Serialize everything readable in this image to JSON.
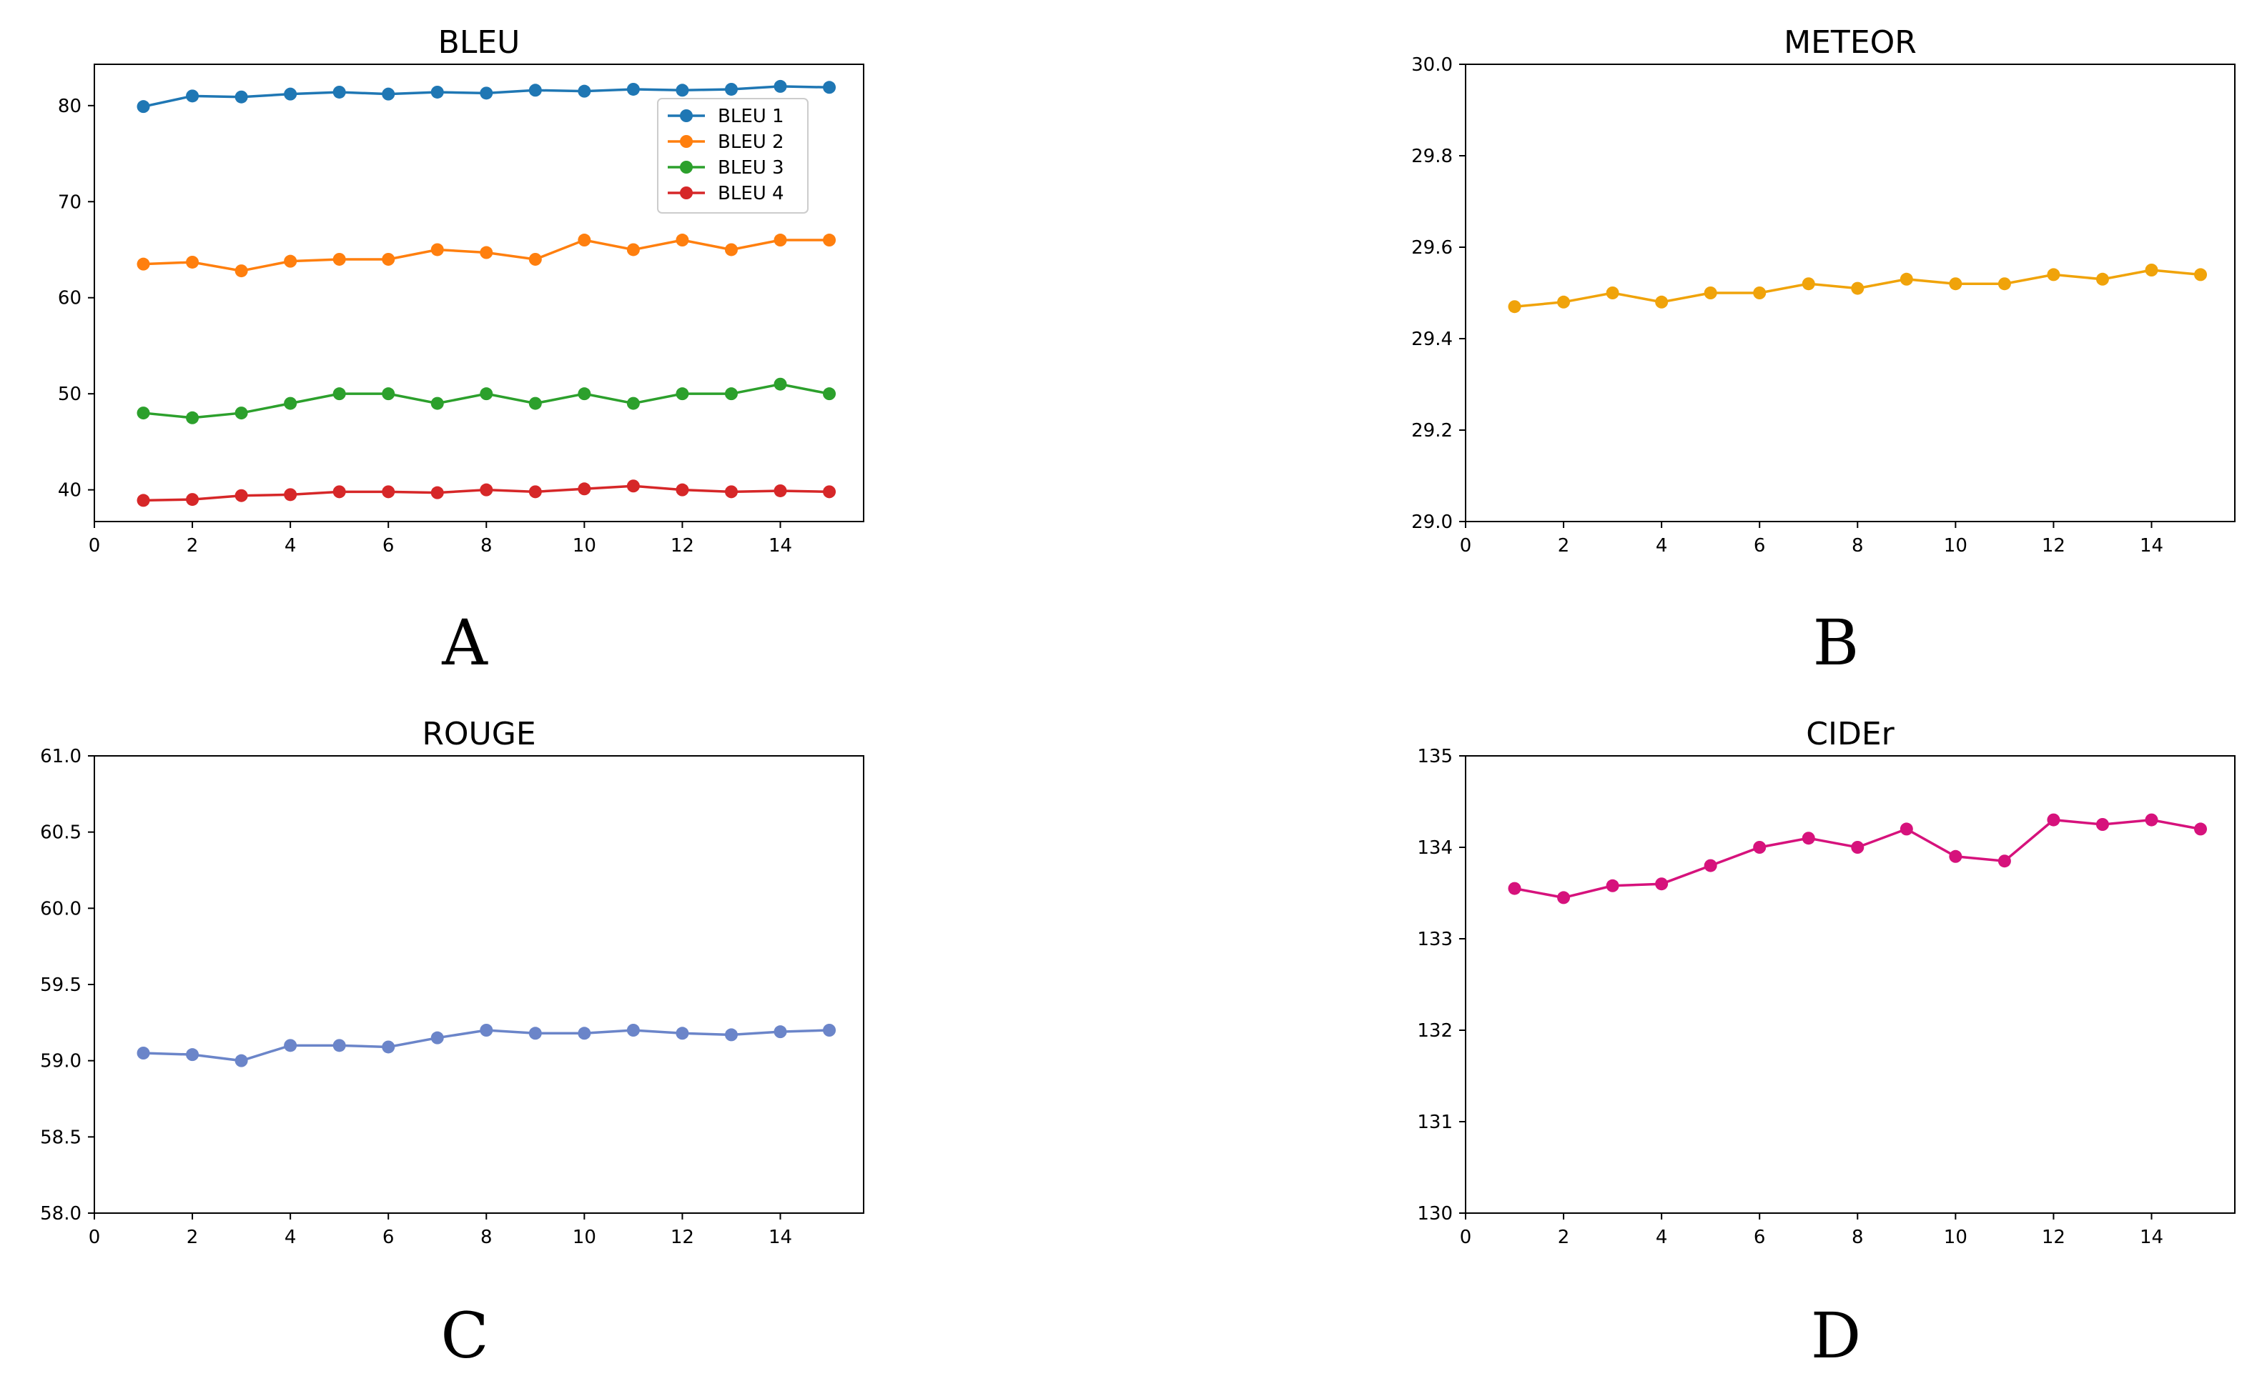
{
  "chart_data": [
    {
      "id": "A",
      "panel_label": "A",
      "type": "line",
      "title": "BLEU",
      "xlabel": "",
      "ylabel": "",
      "xlim": [
        0,
        15.7
      ],
      "ylim": [
        36.7,
        84.3
      ],
      "xticks": [
        0,
        2,
        4,
        6,
        8,
        10,
        12,
        14
      ],
      "yticks": [
        40,
        50,
        60,
        70,
        80
      ],
      "tick_decimals": 0,
      "grid": false,
      "legend": "top-right",
      "x": [
        1,
        2,
        3,
        4,
        5,
        6,
        7,
        8,
        9,
        10,
        11,
        12,
        13,
        14,
        15
      ],
      "series": [
        {
          "name": "BLEU 1",
          "color": "#1f77b4",
          "values": [
            79.9,
            81.0,
            80.9,
            81.2,
            81.4,
            81.2,
            81.4,
            81.3,
            81.6,
            81.5,
            81.7,
            81.6,
            81.7,
            82.0,
            81.9
          ]
        },
        {
          "name": "BLEU 2",
          "color": "#ff7f0e",
          "values": [
            63.5,
            63.7,
            62.8,
            63.8,
            64.0,
            64.0,
            65.0,
            64.7,
            64.0,
            66.0,
            65.0,
            66.0,
            65.0,
            66.0,
            66.0
          ]
        },
        {
          "name": "BLEU 3",
          "color": "#2ca02c",
          "values": [
            48.0,
            47.5,
            48.0,
            49.0,
            50.0,
            50.0,
            49.0,
            50.0,
            49.0,
            50.0,
            49.0,
            50.0,
            50.0,
            51.0,
            50.0
          ]
        },
        {
          "name": "BLEU 4",
          "color": "#d62728",
          "values": [
            38.9,
            39.0,
            39.4,
            39.5,
            39.8,
            39.8,
            39.7,
            40.0,
            39.8,
            40.1,
            40.4,
            40.0,
            39.8,
            39.9,
            39.8
          ]
        }
      ]
    },
    {
      "id": "B",
      "panel_label": "B",
      "type": "line",
      "title": "METEOR",
      "xlabel": "",
      "ylabel": "",
      "xlim": [
        0,
        15.7
      ],
      "ylim": [
        29.0,
        30.0
      ],
      "xticks": [
        0,
        2,
        4,
        6,
        8,
        10,
        12,
        14
      ],
      "yticks": [
        29.0,
        29.2,
        29.4,
        29.6,
        29.8,
        30.0
      ],
      "tick_decimals": 1,
      "grid": false,
      "x": [
        1,
        2,
        3,
        4,
        5,
        6,
        7,
        8,
        9,
        10,
        11,
        12,
        13,
        14,
        15
      ],
      "series": [
        {
          "name": "METEOR",
          "color": "#f0a30a",
          "values": [
            29.47,
            29.48,
            29.5,
            29.48,
            29.5,
            29.5,
            29.52,
            29.51,
            29.53,
            29.52,
            29.52,
            29.54,
            29.53,
            29.55,
            29.54
          ]
        }
      ]
    },
    {
      "id": "C",
      "panel_label": "C",
      "type": "line",
      "title": "ROUGE",
      "xlabel": "",
      "ylabel": "",
      "xlim": [
        0,
        15.7
      ],
      "ylim": [
        58.0,
        61.0
      ],
      "xticks": [
        0,
        2,
        4,
        6,
        8,
        10,
        12,
        14
      ],
      "yticks": [
        58.0,
        58.5,
        59.0,
        59.5,
        60.0,
        60.5,
        61.0
      ],
      "tick_decimals": 1,
      "grid": false,
      "x": [
        1,
        2,
        3,
        4,
        5,
        6,
        7,
        8,
        9,
        10,
        11,
        12,
        13,
        14,
        15
      ],
      "series": [
        {
          "name": "ROUGE",
          "color": "#6b85c9",
          "values": [
            59.05,
            59.04,
            59.0,
            59.1,
            59.1,
            59.09,
            59.15,
            59.2,
            59.18,
            59.18,
            59.2,
            59.18,
            59.17,
            59.19,
            59.2
          ]
        }
      ]
    },
    {
      "id": "D",
      "panel_label": "D",
      "type": "line",
      "title": "CIDEr",
      "xlabel": "",
      "ylabel": "",
      "xlim": [
        0,
        15.7
      ],
      "ylim": [
        130,
        135
      ],
      "xticks": [
        0,
        2,
        4,
        6,
        8,
        10,
        12,
        14
      ],
      "yticks": [
        130,
        131,
        132,
        133,
        134,
        135
      ],
      "tick_decimals": 0,
      "grid": false,
      "x": [
        1,
        2,
        3,
        4,
        5,
        6,
        7,
        8,
        9,
        10,
        11,
        12,
        13,
        14,
        15
      ],
      "series": [
        {
          "name": "CIDEr",
          "color": "#d6127c",
          "values": [
            133.55,
            133.45,
            133.58,
            133.6,
            133.8,
            134.0,
            134.1,
            134.0,
            134.2,
            133.9,
            133.85,
            134.3,
            134.25,
            134.3,
            134.2
          ]
        }
      ]
    }
  ]
}
